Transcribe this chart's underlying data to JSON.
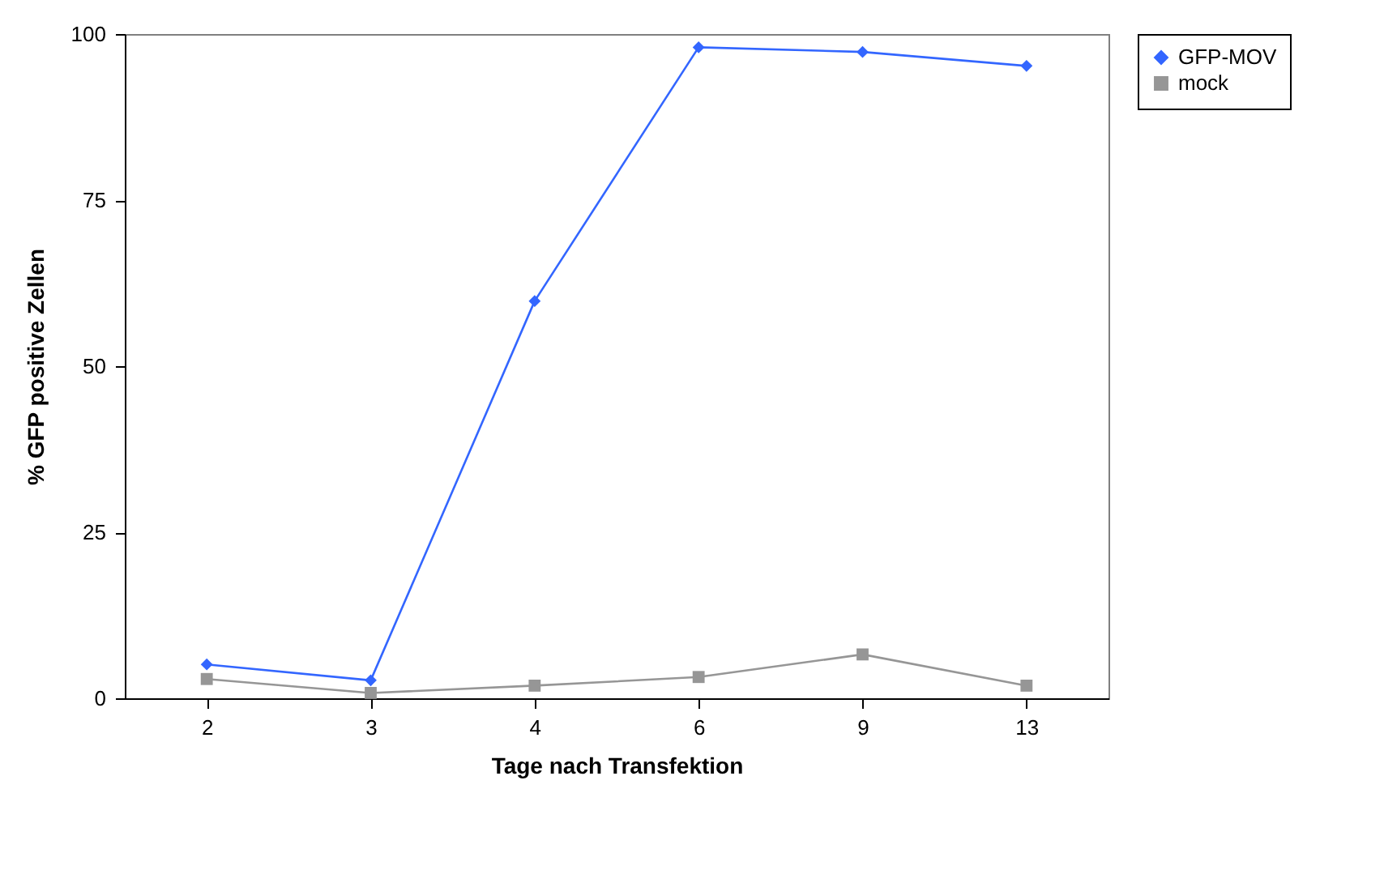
{
  "chart_data": {
    "type": "line",
    "xlabel": "Tage nach Transfektion",
    "ylabel": "% GFP positive Zellen",
    "categories": [
      "2",
      "3",
      "4",
      "6",
      "9",
      "13"
    ],
    "series": [
      {
        "name": "GFP-MOV",
        "color": "#3366ff",
        "marker": "diamond",
        "values": [
          5.1,
          2.7,
          59.8,
          98.0,
          97.3,
          95.2
        ]
      },
      {
        "name": "mock",
        "color": "#969696",
        "marker": "square",
        "values": [
          2.9,
          0.8,
          1.9,
          3.2,
          6.6,
          1.9
        ]
      }
    ],
    "ylim": [
      0,
      100
    ],
    "yticks": [
      0,
      25,
      50,
      75,
      100
    ],
    "grid": false,
    "legend": "right"
  }
}
